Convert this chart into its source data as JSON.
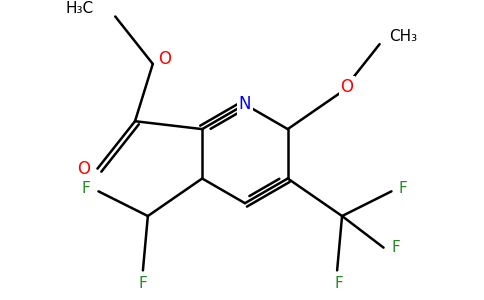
{
  "background_color": "#ffffff",
  "figsize": [
    4.84,
    3.0
  ],
  "dpi": 100,
  "colors": {
    "bond": "#000000",
    "F": "#228B22",
    "N": "#0000ff",
    "O": "#ff0000",
    "C": "#000000"
  },
  "font_size": 11,
  "lw": 1.8
}
